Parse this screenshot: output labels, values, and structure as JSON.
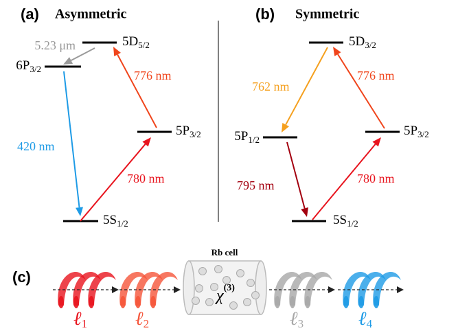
{
  "panels": [
    {
      "label": "(a)",
      "title": "Asymmetric",
      "levels": [
        {
          "name": "5D",
          "sub": "5/2"
        },
        {
          "name": "6P",
          "sub": "3/2"
        },
        {
          "name": "5P",
          "sub": "3/2"
        },
        {
          "name": "5S",
          "sub": "1/2"
        }
      ],
      "transitions": [
        {
          "label": "5.23 μm",
          "color": "#9a9a9a"
        },
        {
          "label": "420 nm",
          "color": "#1e9be6"
        },
        {
          "label": "780 nm",
          "color": "#e8141e"
        },
        {
          "label": "776 nm",
          "color": "#f0451c"
        }
      ]
    },
    {
      "label": "(b)",
      "title": "Symmetric",
      "levels": [
        {
          "name": "5D",
          "sub": "3/2"
        },
        {
          "name": "5P",
          "sub": "1/2"
        },
        {
          "name": "5P",
          "sub": "3/2"
        },
        {
          "name": "5S",
          "sub": "1/2"
        }
      ],
      "transitions": [
        {
          "label": "762 nm",
          "color": "#f5a01e"
        },
        {
          "label": "795 nm",
          "color": "#a3000f"
        },
        {
          "label": "780 nm",
          "color": "#e8141e"
        },
        {
          "label": "776 nm",
          "color": "#f0451c"
        }
      ]
    }
  ],
  "panel_c": {
    "label": "(c)",
    "cell_label": "Rb cell",
    "medium": {
      "symbol": "χ",
      "sup": "(3)"
    },
    "beams": [
      {
        "symbol": "ℓ",
        "sub": "1",
        "color": "#e8141e"
      },
      {
        "symbol": "ℓ",
        "sub": "2",
        "color": "#f5553a"
      },
      {
        "symbol": "ℓ",
        "sub": "3",
        "color": "#a8a8a8"
      },
      {
        "symbol": "ℓ",
        "sub": "4",
        "color": "#1e9be6"
      }
    ]
  }
}
